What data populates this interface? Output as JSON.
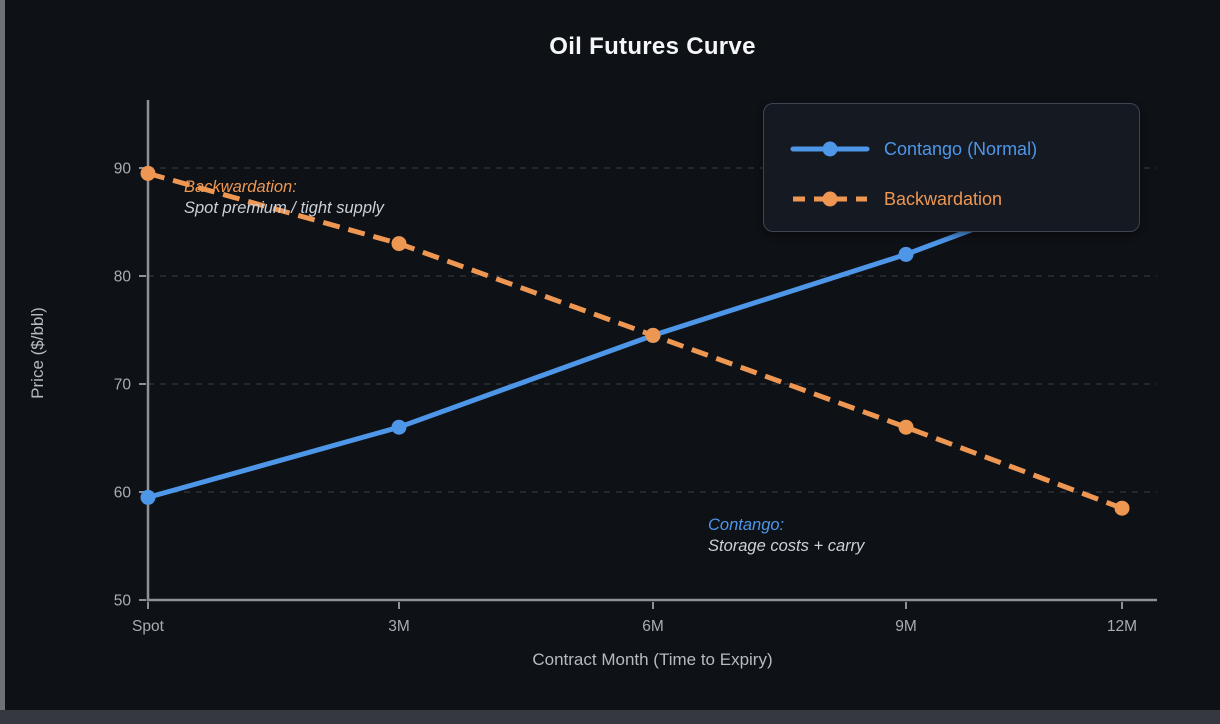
{
  "chart_data": {
    "type": "line",
    "title": "Oil Futures Curve",
    "xlabel": "Contract Month (Time to Expiry)",
    "ylabel": "Price ($/bbl)",
    "categories": [
      "Spot",
      "3M",
      "6M",
      "9M",
      "12M"
    ],
    "y_ticks": [
      50,
      60,
      70,
      80,
      90
    ],
    "ylim": [
      50,
      96
    ],
    "grid": "horizontal-dashed",
    "legend_position": "upper-right",
    "series": [
      {
        "name": "Contango (Normal)",
        "style": "solid",
        "color": "#4d96e8",
        "values": [
          59.5,
          66,
          74.5,
          82,
          89.5
        ]
      },
      {
        "name": "Backwardation",
        "style": "dashed",
        "color": "#ee9752",
        "values": [
          89.5,
          83,
          74.5,
          66,
          58.5
        ]
      }
    ],
    "annotations": [
      {
        "title": "Backwardation:",
        "text": "Spot premium / tight supply",
        "color": "#ee9752"
      },
      {
        "title": "Contango:",
        "text": "Storage costs + carry",
        "color": "#4d96e8"
      }
    ]
  }
}
